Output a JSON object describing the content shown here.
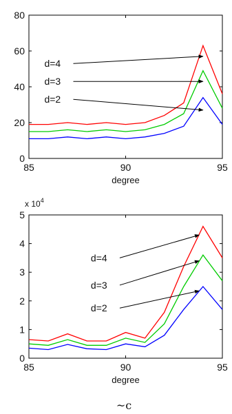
{
  "chart_data": [
    {
      "type": "line",
      "xlabel": "degree",
      "ylabel": "",
      "xlim": [
        85,
        95
      ],
      "ylim": [
        0,
        80
      ],
      "x_ticks": [
        "85",
        "90",
        "95"
      ],
      "y_ticks": [
        "0",
        "20",
        "40",
        "60",
        "80"
      ],
      "x": [
        85,
        86,
        87,
        88,
        89,
        90,
        91,
        92,
        93,
        94,
        95
      ],
      "series": [
        {
          "name": "d=4",
          "color": "#ff0000",
          "values": [
            19,
            19,
            20,
            19,
            20,
            19,
            20,
            24,
            31,
            63,
            36
          ]
        },
        {
          "name": "d=3",
          "color": "#00cc00",
          "values": [
            15,
            15,
            16,
            15,
            16,
            15,
            16,
            19,
            25,
            49,
            28
          ]
        },
        {
          "name": "d=2",
          "color": "#0000ff",
          "values": [
            11,
            11,
            12,
            11,
            12,
            11,
            12,
            14,
            18,
            34,
            19
          ]
        }
      ],
      "annotations": [
        {
          "text": "d=4",
          "target_x": 94,
          "target_y": 57,
          "label_x": 85.8,
          "label_y": 53
        },
        {
          "text": "d=3",
          "target_x": 94,
          "target_y": 43,
          "label_x": 85.8,
          "label_y": 43
        },
        {
          "text": "d=2",
          "target_x": 94,
          "target_y": 27,
          "label_x": 85.8,
          "label_y": 33
        }
      ]
    },
    {
      "type": "line",
      "xlabel": "degree",
      "ylabel": "",
      "multiplier": "x 10",
      "multiplier_exp": "4",
      "xlim": [
        85,
        95
      ],
      "ylim": [
        0,
        5
      ],
      "x_ticks": [
        "85",
        "90",
        "95"
      ],
      "y_ticks": [
        "0",
        "1",
        "2",
        "3",
        "4",
        "5"
      ],
      "x": [
        85,
        86,
        87,
        88,
        89,
        90,
        91,
        92,
        93,
        94,
        95
      ],
      "series": [
        {
          "name": "d=4",
          "color": "#ff0000",
          "values": [
            0.65,
            0.6,
            0.85,
            0.6,
            0.6,
            0.9,
            0.7,
            1.6,
            3.2,
            4.6,
            3.5
          ]
        },
        {
          "name": "d=3",
          "color": "#00cc00",
          "values": [
            0.5,
            0.45,
            0.65,
            0.45,
            0.45,
            0.7,
            0.55,
            1.2,
            2.5,
            3.6,
            2.7
          ]
        },
        {
          "name": "d=2",
          "color": "#0000ff",
          "values": [
            0.35,
            0.3,
            0.48,
            0.33,
            0.3,
            0.5,
            0.4,
            0.8,
            1.7,
            2.5,
            1.7
          ]
        }
      ],
      "annotations": [
        {
          "text": "d=4",
          "target_x": 93.8,
          "target_y": 4.3,
          "label_x": 88.2,
          "label_y": 3.5
        },
        {
          "text": "d=3",
          "target_x": 93.8,
          "target_y": 3.4,
          "label_x": 88.2,
          "label_y": 2.55
        },
        {
          "text": "d=2",
          "target_x": 93.8,
          "target_y": 2.35,
          "label_x": 88.2,
          "label_y": 1.75
        }
      ]
    }
  ],
  "caption_glyph": "~c"
}
